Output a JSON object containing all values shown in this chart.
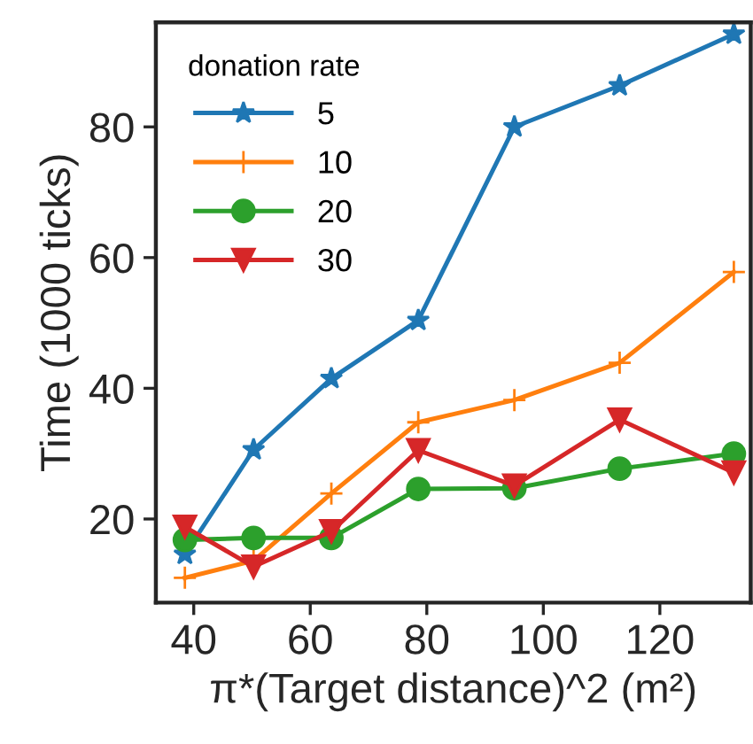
{
  "chart_data": {
    "type": "line",
    "xlabel": "π*(Target distance)^2 (m²)",
    "ylabel": "Time (1000 ticks)",
    "legend_title": "donation rate",
    "legend": "top left",
    "grid": false,
    "x": [
      38.48,
      50.27,
      63.62,
      78.54,
      95.03,
      113.1,
      132.7
    ],
    "series": [
      {
        "name": "5",
        "color": "#1f77b4",
        "marker": "star",
        "values": [
          14.6,
          30.6,
          41.5,
          50.4,
          80,
          86.3,
          94.2
        ]
      },
      {
        "name": "10",
        "color": "#ff7f0e",
        "marker": "plus",
        "values": [
          11.0,
          13.6,
          23.9,
          34.8,
          38.2,
          43.9,
          57.8
        ]
      },
      {
        "name": "20",
        "color": "#2ca02c",
        "marker": "circle",
        "values": [
          16.8,
          17.1,
          17.1,
          24.6,
          24.7,
          27.7,
          30.0
        ]
      },
      {
        "name": "30",
        "color": "#d62728",
        "marker": "triangle",
        "values": [
          18.8,
          12.7,
          18.1,
          30.5,
          25.1,
          35.2,
          27.1
        ]
      }
    ],
    "xlim": [
      33.5,
      135.6
    ],
    "ylim": [
      7.2,
      96
    ],
    "xticks": [
      40,
      60,
      80,
      100,
      120
    ],
    "yticks": [
      20,
      40,
      60,
      80
    ]
  }
}
